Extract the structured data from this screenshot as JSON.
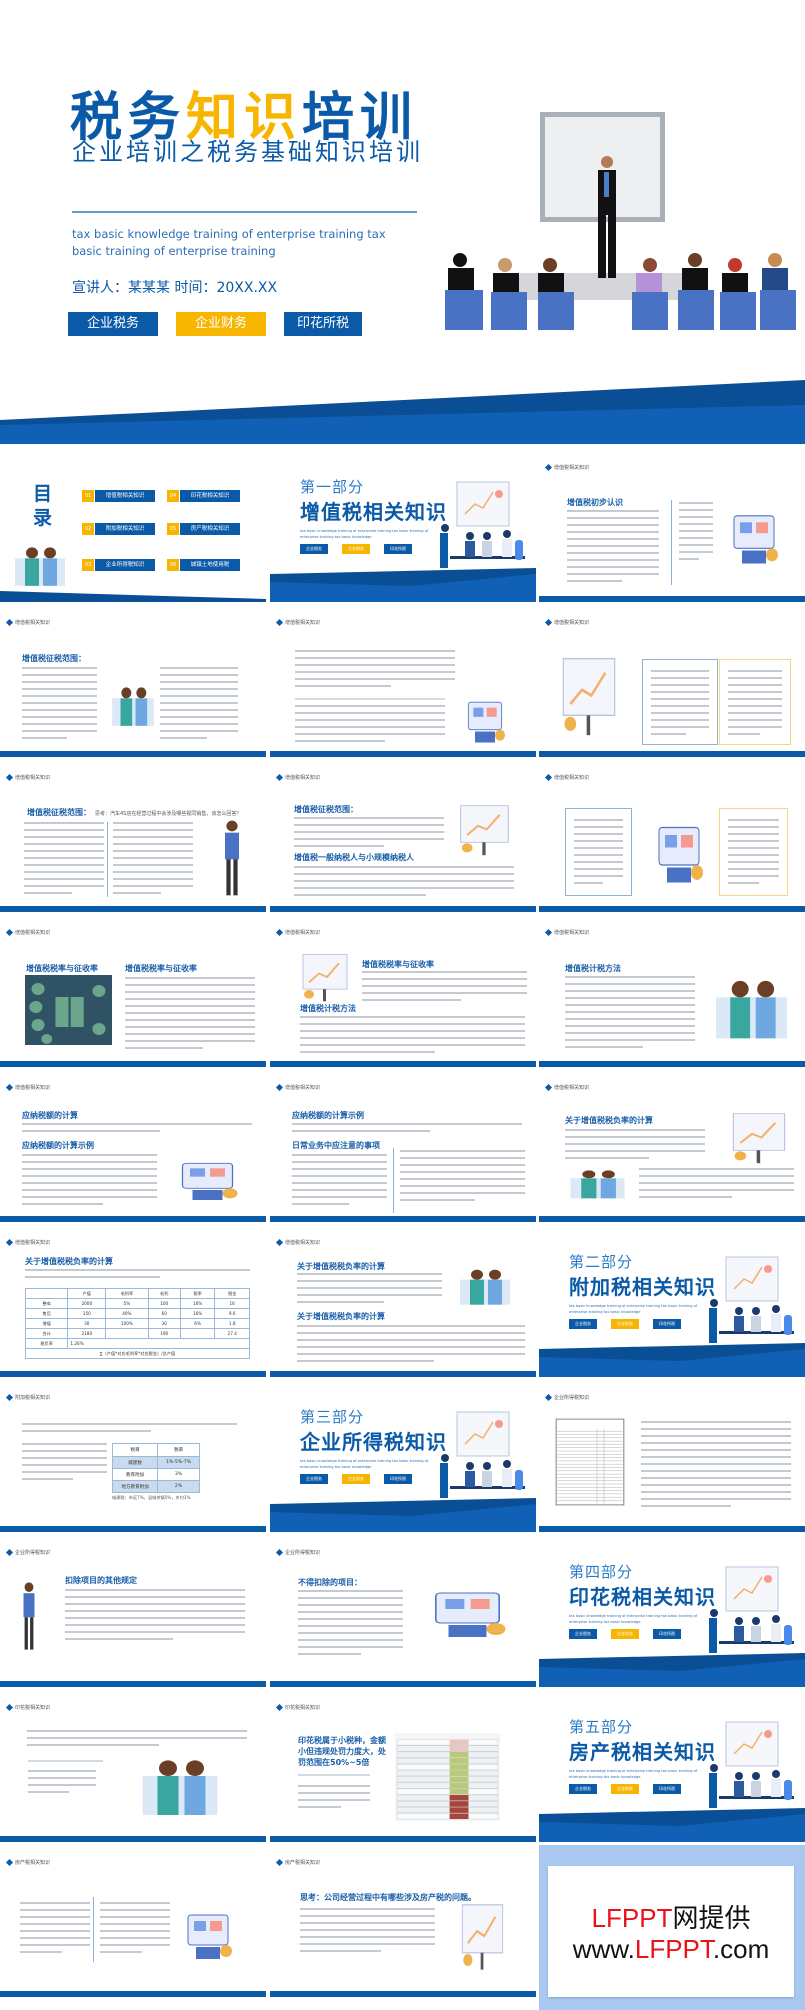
{
  "colors": {
    "blue": "#0a5aa8",
    "yellow": "#f7b500",
    "light_blue": "#2a7cc7",
    "chair_blue": "#4a72c4"
  },
  "hero": {
    "title_parts": [
      {
        "text": "税务",
        "color": "#0a5aa8"
      },
      {
        "text": "知识",
        "color": "#f7b500"
      },
      {
        "text": "培训",
        "color": "#0a5aa8"
      }
    ],
    "subtitle": "企业培训之税务基础知识培训",
    "english": "tax basic knowledge training of enterprise training tax basic training of enterprise training",
    "presenter": "宣讲人：某某某   时间：20XX.XX",
    "buttons": [
      "企业税务",
      "企业财务",
      "印花所税"
    ]
  },
  "slides": [
    {
      "type": "toc",
      "title": "目录",
      "items": [
        {
          "num": "01",
          "label": "增值税相关知识"
        },
        {
          "num": "02",
          "label": "附加税相关知识"
        },
        {
          "num": "03",
          "label": "企业所得税知识"
        },
        {
          "num": "04",
          "label": "印花税相关知识"
        },
        {
          "num": "05",
          "label": "房产税相关知识"
        },
        {
          "num": "06",
          "label": "城镇土地使用税"
        }
      ]
    },
    {
      "type": "section",
      "part": "第一部分",
      "title": "增值税相关知识",
      "english": "tax basic knowledge training of enterprise training tax basic training of enterprise training tax basic knowledge",
      "buttons": [
        "企业税务",
        "企业财务",
        "印花所税"
      ]
    },
    {
      "type": "content",
      "label": "增值税相关知识",
      "titles": [
        "增值税初步认识"
      ]
    },
    {
      "type": "content",
      "label": "增值税相关知识",
      "titles": [
        "增值税征税范围："
      ]
    },
    {
      "type": "content",
      "label": "增值税相关知识",
      "titles": []
    },
    {
      "type": "content",
      "label": "增值税相关知识",
      "titles": []
    },
    {
      "type": "content",
      "label": "增值税相关知识",
      "titles": [
        "增值税征税范围："
      ],
      "subtitle": "思考：汽车4S店在经营过程中会涉及哪些视同销售，该怎么回答？"
    },
    {
      "type": "content",
      "label": "增值税相关知识",
      "titles": [
        "增值税征税范围：",
        "增值税一般纳税人与小规模纳税人"
      ]
    },
    {
      "type": "content",
      "label": "增值税相关知识",
      "titles": []
    },
    {
      "type": "content",
      "label": "增值税相关知识",
      "titles": [
        "增值税税率与征收率",
        "增值税税率与征收率"
      ]
    },
    {
      "type": "content",
      "label": "增值税相关知识",
      "titles": [
        "增值税税率与征收率",
        "增值税计税方法"
      ]
    },
    {
      "type": "content",
      "label": "增值税相关知识",
      "titles": [
        "增值税计税方法"
      ]
    },
    {
      "type": "content",
      "label": "增值税相关知识",
      "titles": [
        "应纳税额的计算",
        "应纳税额的计算示例"
      ]
    },
    {
      "type": "content",
      "label": "增值税相关知识",
      "titles": [
        "应纳税额的计算示例",
        "日常业务中应注意的事项"
      ]
    },
    {
      "type": "content",
      "label": "增值税相关知识",
      "titles": [
        "关于增值税税负率的计算"
      ]
    },
    {
      "type": "content",
      "label": "增值税相关知识",
      "titles": [
        "关于增值税税负率的计算"
      ],
      "table": {
        "headers": [
          "",
          "产值",
          "毛利率",
          "毛利",
          "税率",
          "税金"
        ],
        "rows": [
          [
            "整车",
            "2000",
            "5%",
            "100",
            "16%",
            "16"
          ],
          [
            "售后",
            "150",
            "40%",
            "60",
            "16%",
            "9.6"
          ],
          [
            "增值",
            "30",
            "100%",
            "30",
            "6%",
            "1.8"
          ],
          [
            "合计",
            "2180",
            "",
            "190",
            "",
            "27.4"
          ]
        ],
        "rate_label": "税负率",
        "rate_value": "1.26%",
        "formula": "∑（产值*对应毛利率*对应税金）/总产值"
      }
    },
    {
      "type": "content",
      "label": "增值税相关知识",
      "titles": [
        "关于增值税税负率的计算",
        "关于增值税税负率的计算"
      ]
    },
    {
      "type": "section",
      "part": "第二部分",
      "title": "附加税相关知识",
      "english": "tax basic knowledge training of enterprise training tax basic training of enterprise training tax basic knowledge",
      "buttons": [
        "企业税务",
        "企业财务",
        "印花所税"
      ]
    },
    {
      "type": "content",
      "label": "附加税相关知识",
      "titles": [],
      "table": {
        "headers": [
          "税目",
          "税率"
        ],
        "rows": [
          [
            "城建税",
            "1%-5%-7%"
          ],
          [
            "教育附加",
            "3%"
          ],
          [
            "地方教育附加",
            "2%"
          ]
        ],
        "note": "城建税：市区7%，县城关镇5%，乡村1%"
      }
    },
    {
      "type": "section",
      "part": "第三部分",
      "title": "企业所得税知识",
      "english": "tax basic knowledge training of enterprise training tax basic training of enterprise training tax basic knowledge",
      "buttons": [
        "企业税务",
        "企业财务",
        "印花所税"
      ]
    },
    {
      "type": "content",
      "label": "企业所得税知识",
      "titles": []
    },
    {
      "type": "content",
      "label": "企业所得税知识",
      "titles": [
        "扣除项目的其他规定"
      ]
    },
    {
      "type": "content",
      "label": "企业所得税知识",
      "titles": [
        "不得扣除的项目："
      ]
    },
    {
      "type": "section",
      "part": "第四部分",
      "title": "印花税相关知识",
      "english": "tax basic knowledge training of enterprise training tax basic training of enterprise training tax basic knowledge",
      "buttons": [
        "企业税务",
        "企业财务",
        "印花所税"
      ]
    },
    {
      "type": "content",
      "label": "印花税相关知识",
      "titles": []
    },
    {
      "type": "content",
      "label": "印花税相关知识",
      "titles": [
        "印花税属于小税种，金额",
        "小但违规处罚力度大，处",
        "罚范围在50%~5倍"
      ]
    },
    {
      "type": "section",
      "part": "第五部分",
      "title": "房产税相关知识",
      "english": "tax basic knowledge training of enterprise training tax basic training of enterprise training tax basic knowledge",
      "buttons": [
        "企业税务",
        "企业财务",
        "印花所税"
      ]
    },
    {
      "type": "content",
      "label": "房产税相关知识",
      "titles": []
    },
    {
      "type": "content",
      "label": "房产税相关知识",
      "titles": [
        "思考：公司经营过程中有哪些涉及房产税的问题。"
      ]
    }
  ],
  "watermark": {
    "line1_red": "LFPPT",
    "line1_black": "网提供",
    "line2_pre": "www.",
    "line2_red": "LFPPT",
    "line2_post": ".com"
  }
}
